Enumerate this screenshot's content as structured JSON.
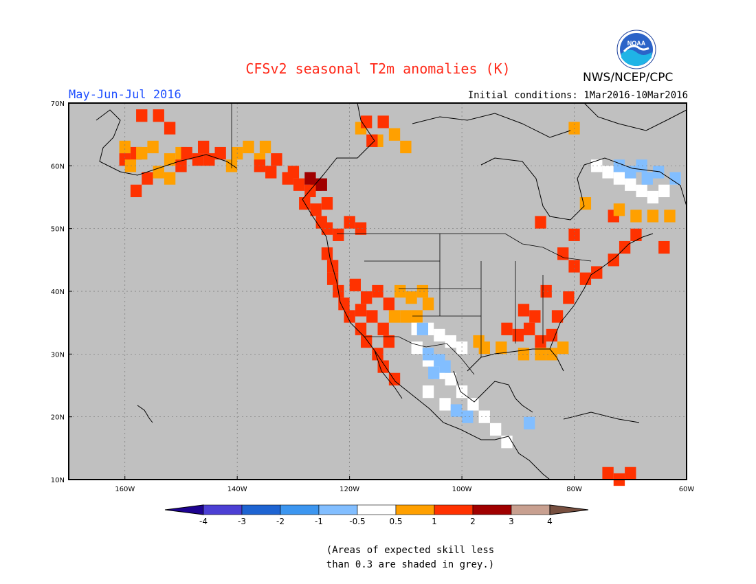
{
  "header": {
    "title": "CFSv2 seasonal T2m anomalies (K)",
    "period": "May-Jun-Jul 2016",
    "initial_conditions": "Initial conditions: 1Mar2016-10Mar2016",
    "agency": "NWS/NCEP/CPC",
    "logo_text": "NOAA"
  },
  "map": {
    "lat_labels": [
      "70N",
      "60N",
      "50N",
      "40N",
      "30N",
      "20N",
      "10N"
    ],
    "lon_labels": [
      "160W",
      "140W",
      "120W",
      "100W",
      "80W",
      "60W"
    ],
    "lat_range": [
      10,
      70
    ],
    "lon_range": [
      -170,
      -60
    ],
    "background_color": "#c0c0c0",
    "grid": true
  },
  "colorbar": {
    "labels": [
      "-4",
      "-3",
      "-2",
      "-1",
      "-0.5",
      "0.5",
      "1",
      "2",
      "3",
      "4"
    ],
    "colors": [
      "#1d0290",
      "#4c3fd4",
      "#1e64d2",
      "#3c96f0",
      "#82beff",
      "#ffffff",
      "#ffa000",
      "#ff3200",
      "#a00000",
      "#c8a090",
      "#785040"
    ]
  },
  "note": {
    "line1": "(Areas of expected skill less",
    "line2": "than 0.3 are shaded in grey.)"
  },
  "regions": [
    {
      "name": "alaska-west-red",
      "color": "#ff3200",
      "cells": [
        [
          -157,
          68
        ],
        [
          -154,
          68
        ],
        [
          -152,
          66
        ],
        [
          -158,
          62
        ],
        [
          -160,
          61
        ],
        [
          -156,
          58
        ],
        [
          -158,
          56
        ]
      ]
    },
    {
      "name": "alaska-orange",
      "color": "#ffa000",
      "cells": [
        [
          -160,
          63
        ],
        [
          -157,
          62
        ],
        [
          -155,
          63
        ],
        [
          -152,
          61
        ],
        [
          -150,
          62
        ],
        [
          -154,
          59
        ],
        [
          -152,
          58
        ],
        [
          -159,
          60
        ]
      ]
    },
    {
      "name": "alaska-red-south",
      "color": "#ff3200",
      "cells": [
        [
          -149,
          62
        ],
        [
          -146,
          63
        ],
        [
          -147,
          61
        ],
        [
          -145,
          61
        ],
        [
          -143,
          62
        ],
        [
          -150,
          60
        ]
      ]
    },
    {
      "name": "yukon-orange",
      "color": "#ffa000",
      "cells": [
        [
          -140,
          62
        ],
        [
          -138,
          63
        ],
        [
          -136,
          61
        ],
        [
          -141,
          60
        ],
        [
          -135,
          63
        ]
      ]
    },
    {
      "name": "bc-red",
      "color": "#ff3200",
      "cells": [
        [
          -136,
          60
        ],
        [
          -134,
          59
        ],
        [
          -131,
          58
        ],
        [
          -129,
          57
        ],
        [
          -127,
          56
        ],
        [
          -128,
          54
        ],
        [
          -126,
          53
        ],
        [
          -125,
          51
        ],
        [
          -124,
          50
        ],
        [
          -122,
          49
        ],
        [
          -120,
          51
        ],
        [
          -118,
          50
        ],
        [
          -130,
          59
        ],
        [
          -133,
          61
        ],
        [
          -126,
          57
        ],
        [
          -124,
          54
        ]
      ]
    },
    {
      "name": "bc-darkred",
      "color": "#a00000",
      "cells": [
        [
          -127,
          58
        ],
        [
          -125,
          57
        ]
      ]
    },
    {
      "name": "west-coast-red",
      "color": "#ff3200",
      "cells": [
        [
          -124,
          46
        ],
        [
          -123,
          44
        ],
        [
          -123,
          42
        ],
        [
          -122,
          40
        ],
        [
          -121,
          38
        ],
        [
          -120,
          36
        ],
        [
          -118,
          34
        ],
        [
          -117,
          32
        ],
        [
          -115,
          30
        ],
        [
          -114,
          28
        ],
        [
          -112,
          26
        ],
        [
          -119,
          41
        ],
        [
          -117,
          39
        ],
        [
          -116,
          36
        ],
        [
          -114,
          34
        ],
        [
          -113,
          32
        ],
        [
          -118,
          37
        ],
        [
          -115,
          40
        ],
        [
          -113,
          38
        ]
      ]
    },
    {
      "name": "great-basin-orange",
      "color": "#ffa000",
      "cells": [
        [
          -111,
          40
        ],
        [
          -109,
          39
        ],
        [
          -107,
          40
        ],
        [
          -106,
          38
        ],
        [
          -110,
          36
        ],
        [
          -108,
          36
        ],
        [
          -112,
          36
        ]
      ]
    },
    {
      "name": "southwest-white",
      "color": "#ffffff",
      "cells": [
        [
          -108,
          34
        ],
        [
          -106,
          34
        ],
        [
          -104,
          33
        ],
        [
          -102,
          32
        ],
        [
          -100,
          31
        ],
        [
          -108,
          31
        ],
        [
          -106,
          29
        ],
        [
          -104,
          27
        ],
        [
          -102,
          26
        ],
        [
          -100,
          24
        ],
        [
          -98,
          22
        ],
        [
          -96,
          20
        ],
        [
          -94,
          18
        ],
        [
          -92,
          16
        ],
        [
          -106,
          24
        ],
        [
          -103,
          22
        ]
      ]
    },
    {
      "name": "mexico-blue",
      "color": "#82beff",
      "cells": [
        [
          -106,
          30
        ],
        [
          -104,
          29
        ],
        [
          -105,
          27
        ],
        [
          -103,
          28
        ],
        [
          -101,
          21
        ],
        [
          -99,
          20
        ],
        [
          -88,
          19
        ],
        [
          -107,
          34
        ]
      ]
    },
    {
      "name": "gulf-orange",
      "color": "#ffa000",
      "cells": [
        [
          -97,
          32
        ],
        [
          -96,
          31
        ],
        [
          -93,
          31
        ],
        [
          -89,
          30
        ],
        [
          -86,
          30
        ],
        [
          -84,
          30
        ],
        [
          -82,
          31
        ]
      ]
    },
    {
      "name": "southeast-red",
      "color": "#ff3200",
      "cells": [
        [
          -92,
          34
        ],
        [
          -90,
          33
        ],
        [
          -88,
          34
        ],
        [
          -86,
          32
        ],
        [
          -84,
          33
        ],
        [
          -87,
          36
        ],
        [
          -89,
          37
        ],
        [
          -83,
          36
        ],
        [
          -81,
          39
        ],
        [
          -85,
          40
        ],
        [
          -80,
          44
        ],
        [
          -78,
          42
        ],
        [
          -76,
          43
        ],
        [
          -73,
          45
        ],
        [
          -71,
          47
        ],
        [
          -69,
          49
        ],
        [
          -80,
          49
        ],
        [
          -82,
          46
        ],
        [
          -86,
          51
        ],
        [
          -73,
          52
        ],
        [
          -64,
          47
        ]
      ]
    },
    {
      "name": "labrador-white",
      "color": "#ffffff",
      "cells": [
        [
          -76,
          60
        ],
        [
          -74,
          59
        ],
        [
          -72,
          58
        ],
        [
          -70,
          57
        ],
        [
          -68,
          56
        ],
        [
          -66,
          55
        ],
        [
          -64,
          56
        ],
        [
          -62,
          58
        ]
      ]
    },
    {
      "name": "labrador-blue",
      "color": "#82beff",
      "cells": [
        [
          -72,
          60
        ],
        [
          -70,
          59
        ],
        [
          -67,
          58
        ],
        [
          -65,
          59
        ],
        [
          -62,
          58
        ],
        [
          -68,
          60
        ]
      ]
    },
    {
      "name": "quebec-orange",
      "color": "#ffa000",
      "cells": [
        [
          -72,
          53
        ],
        [
          -69,
          52
        ],
        [
          -66,
          52
        ],
        [
          -63,
          52
        ],
        [
          -78,
          54
        ],
        [
          -80,
          66
        ]
      ]
    },
    {
      "name": "canada-arctic-orange",
      "color": "#ffa000",
      "cells": [
        [
          -118,
          66
        ],
        [
          -115,
          64
        ],
        [
          -112,
          65
        ],
        [
          -110,
          63
        ]
      ]
    },
    {
      "name": "canada-arctic-red",
      "color": "#ff3200",
      "cells": [
        [
          -117,
          67
        ],
        [
          -114,
          67
        ],
        [
          -116,
          64
        ]
      ]
    },
    {
      "name": "south-america-red",
      "color": "#ff3200",
      "cells": [
        [
          -74,
          11
        ],
        [
          -72,
          10
        ],
        [
          -70,
          11
        ]
      ]
    }
  ]
}
